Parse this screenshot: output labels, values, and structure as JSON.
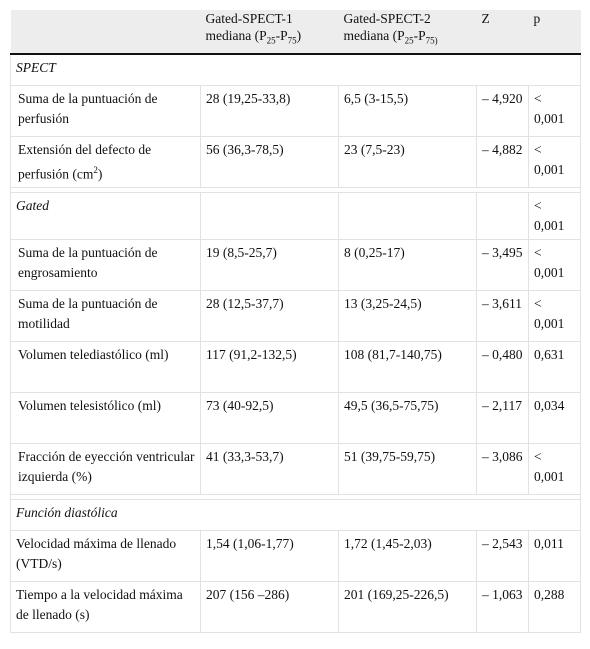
{
  "table": {
    "header": [
      "",
      [
        {
          "text": "Gated-SPECT-1 mediana (P"
        },
        {
          "sub": "25"
        },
        {
          "text": "-P"
        },
        {
          "sub": "75"
        },
        {
          "text": ")"
        }
      ],
      [
        {
          "text": "Gated-SPECT-2 mediana (P"
        },
        {
          "sub": "25"
        },
        {
          "text": "-P"
        },
        {
          "sub": "75)"
        }
      ],
      "Z",
      "p"
    ],
    "rows": [
      {
        "kind": "section",
        "cells": [
          "SPECT"
        ]
      },
      {
        "kind": "data",
        "cells": [
          "Suma de la puntuación de perfusión",
          "28 (19,25-33,8)",
          "6,5 (3-15,5)",
          "– 4,920",
          "< 0,001"
        ]
      },
      {
        "kind": "data",
        "cells": [
          [
            {
              "text": "Extensión del defecto de perfusión (cm"
            },
            {
              "sup": "2"
            },
            {
              "text": ")"
            }
          ],
          "56 (36,3-78,5)",
          "23 (7,5-23)",
          "– 4,882",
          "< 0,001"
        ]
      },
      {
        "kind": "spacer"
      },
      {
        "kind": "section",
        "cells": [
          "Gated"
        ],
        "p": "< 0,001"
      },
      {
        "kind": "data",
        "cells": [
          "Suma de la puntuación de engrosamiento",
          "19 (8,5-25,7)",
          "8 (0,25-17)",
          "– 3,495",
          "< 0,001"
        ]
      },
      {
        "kind": "data",
        "cells": [
          "Suma de la puntuación de motilidad",
          "28 (12,5-37,7)",
          "13 (3,25-24,5)",
          "– 3,611",
          "< 0,001"
        ]
      },
      {
        "kind": "data",
        "cells": [
          "Volumen telediastólico (ml)",
          "117 (91,2-132,5)",
          "108 (81,7-140,75)",
          "– 0,480",
          "0,631"
        ]
      },
      {
        "kind": "data",
        "cells": [
          "Volumen telesistólico (ml)",
          "73 (40-92,5)",
          "49,5 (36,5-75,75)",
          "– 2,117",
          "0,034"
        ]
      },
      {
        "kind": "data",
        "cells": [
          "Fracción de eyección ventricular izquierda (%)",
          "41 (33,3-53,7)",
          "51 (39,75-59,75)",
          "– 3,086",
          "< 0,001"
        ]
      },
      {
        "kind": "spacer"
      },
      {
        "kind": "section",
        "cells": [
          "Función diastólica"
        ]
      },
      {
        "kind": "data",
        "flush": true,
        "cells": [
          "Velocidad máxima de llenado (VTD/s)",
          "1,54 (1,06-1,77)",
          "1,72 (1,45-2,03)",
          "– 2,543",
          "0,011"
        ]
      },
      {
        "kind": "data",
        "flush": true,
        "cells": [
          "Tiempo a la velocidad máxima de llenado (s)",
          "207 (156 –286)",
          "201 (169,25-226,5)",
          "– 1,063",
          "0,288"
        ]
      }
    ]
  }
}
